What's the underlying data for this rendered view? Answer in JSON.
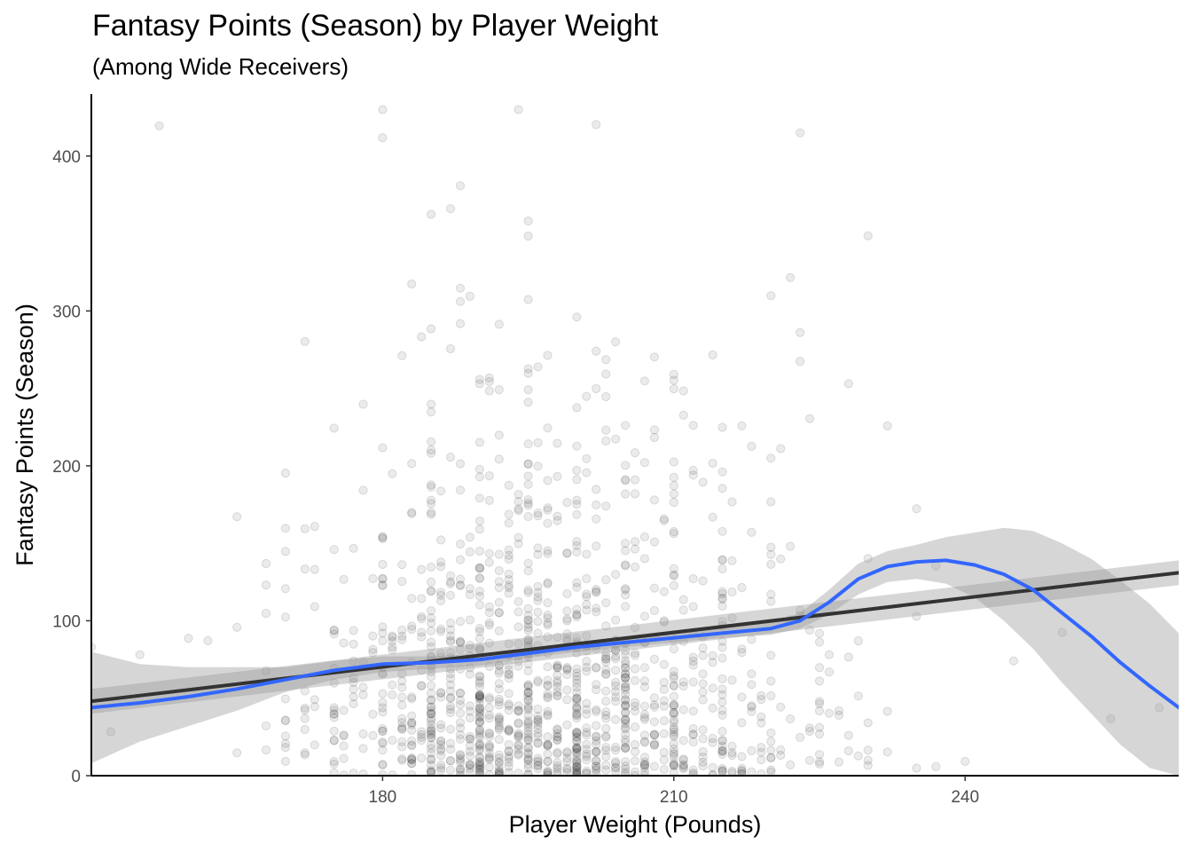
{
  "chart_data": {
    "type": "scatter",
    "title": "Fantasy Points (Season) by Player Weight",
    "subtitle": "(Among Wide Receivers)",
    "xlabel": "Player Weight (Pounds)",
    "ylabel": "Fantasy Points (Season)",
    "xlim": [
      150,
      262
    ],
    "ylim": [
      0,
      440
    ],
    "x_ticks": [
      180,
      210,
      240
    ],
    "y_ticks": [
      0,
      100,
      200,
      300,
      400
    ],
    "grid": false,
    "point_color": "#000000",
    "point_opacity": 0.08,
    "weight_density": [
      [
        150,
        1
      ],
      [
        152,
        1
      ],
      [
        155,
        1
      ],
      [
        157,
        1
      ],
      [
        160,
        1
      ],
      [
        162,
        1
      ],
      [
        165,
        3
      ],
      [
        168,
        6
      ],
      [
        170,
        12
      ],
      [
        172,
        10
      ],
      [
        173,
        6
      ],
      [
        175,
        18
      ],
      [
        176,
        8
      ],
      [
        177,
        10
      ],
      [
        178,
        8
      ],
      [
        179,
        6
      ],
      [
        180,
        30
      ],
      [
        181,
        10
      ],
      [
        182,
        20
      ],
      [
        183,
        25
      ],
      [
        184,
        15
      ],
      [
        185,
        60
      ],
      [
        186,
        25
      ],
      [
        187,
        30
      ],
      [
        188,
        35
      ],
      [
        189,
        25
      ],
      [
        190,
        70
      ],
      [
        191,
        30
      ],
      [
        192,
        40
      ],
      [
        193,
        35
      ],
      [
        194,
        30
      ],
      [
        195,
        70
      ],
      [
        196,
        35
      ],
      [
        197,
        40
      ],
      [
        198,
        30
      ],
      [
        199,
        25
      ],
      [
        200,
        70
      ],
      [
        201,
        30
      ],
      [
        202,
        35
      ],
      [
        203,
        30
      ],
      [
        204,
        25
      ],
      [
        205,
        55
      ],
      [
        206,
        20
      ],
      [
        207,
        25
      ],
      [
        208,
        20
      ],
      [
        209,
        15
      ],
      [
        210,
        45
      ],
      [
        211,
        15
      ],
      [
        212,
        18
      ],
      [
        213,
        15
      ],
      [
        214,
        12
      ],
      [
        215,
        35
      ],
      [
        216,
        10
      ],
      [
        217,
        12
      ],
      [
        218,
        10
      ],
      [
        219,
        8
      ],
      [
        220,
        18
      ],
      [
        221,
        5
      ],
      [
        222,
        5
      ],
      [
        223,
        6
      ],
      [
        224,
        5
      ],
      [
        225,
        12
      ],
      [
        226,
        3
      ],
      [
        227,
        3
      ],
      [
        228,
        4
      ],
      [
        229,
        3
      ],
      [
        230,
        6
      ],
      [
        232,
        3
      ],
      [
        235,
        3
      ],
      [
        237,
        2
      ],
      [
        240,
        1
      ],
      [
        245,
        1
      ],
      [
        250,
        1
      ],
      [
        255,
        1
      ],
      [
        260,
        1
      ]
    ],
    "y_distribution": "right-skewed, concentrated near 0, sparse up to ~440",
    "series": [
      {
        "name": "",
        "type": "linear fit",
        "color": "#333333",
        "x": [
          150,
          262
        ],
        "y": [
          48,
          131
        ],
        "ci_lower": [
          40,
          123
        ],
        "ci_upper": [
          56,
          139
        ]
      },
      {
        "name": "",
        "type": "loess smooth",
        "color": "#3366FF",
        "x": [
          150,
          155,
          160,
          165,
          170,
          175,
          180,
          185,
          190,
          195,
          200,
          205,
          210,
          215,
          220,
          223,
          226,
          229,
          232,
          235,
          238,
          241,
          244,
          247,
          250,
          253,
          256,
          259,
          262
        ],
        "y": [
          44,
          47,
          51,
          56,
          62,
          68,
          72,
          73,
          75,
          79,
          83,
          86,
          89,
          92,
          95,
          100,
          112,
          127,
          135,
          138,
          139,
          136,
          130,
          120,
          105,
          90,
          73,
          58,
          44
        ],
        "ci_lower": [
          8,
          22,
          32,
          42,
          54,
          62,
          67,
          69,
          71,
          76,
          80,
          83,
          86,
          89,
          91,
          95,
          104,
          117,
          125,
          127,
          124,
          115,
          100,
          82,
          60,
          40,
          20,
          5,
          0
        ],
        "ci_upper": [
          80,
          72,
          70,
          70,
          70,
          74,
          77,
          77,
          79,
          82,
          86,
          89,
          92,
          95,
          99,
          105,
          120,
          137,
          145,
          149,
          154,
          157,
          160,
          158,
          150,
          140,
          126,
          111,
          92
        ]
      }
    ]
  }
}
